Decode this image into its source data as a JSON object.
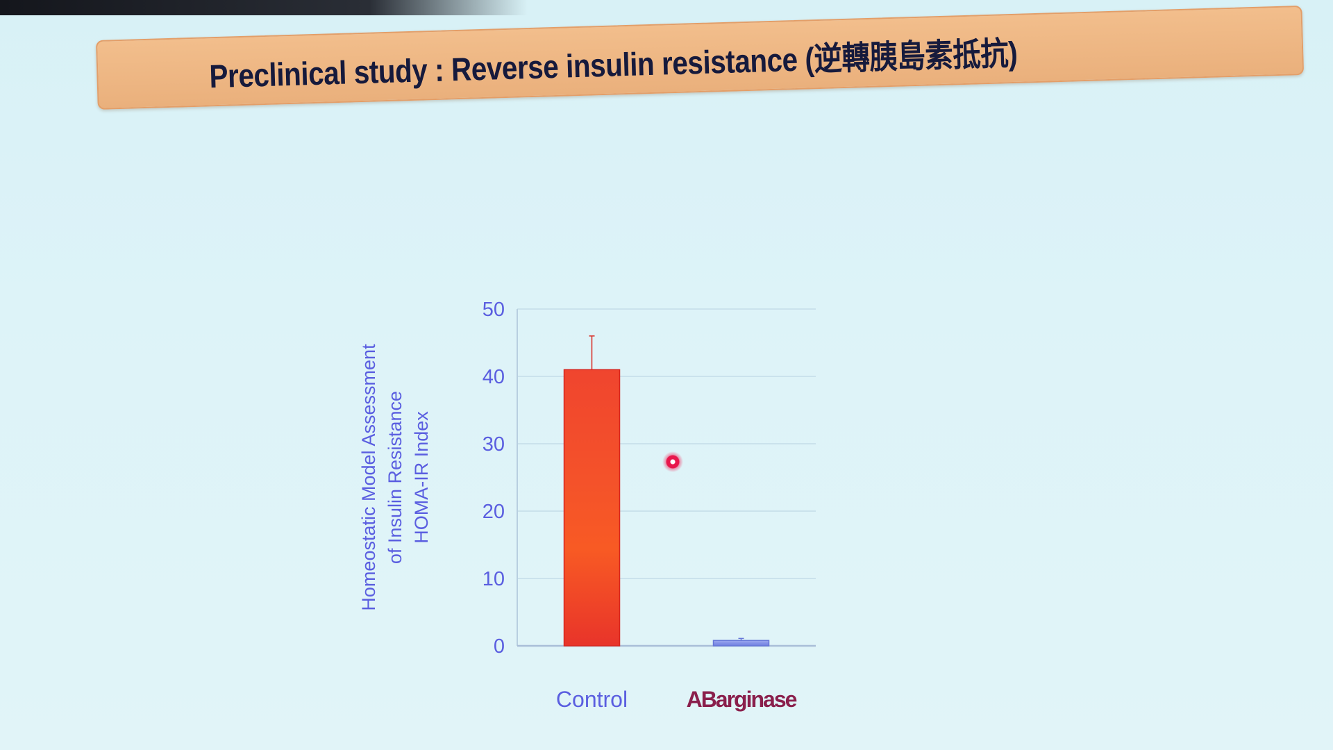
{
  "slide": {
    "title": "Preclinical study :  Reverse insulin resistance (逆轉胰島素抵抗)"
  },
  "colors": {
    "background": "#dcf2f7",
    "banner": "#eeb582",
    "title_text": "#161a3c",
    "axis_text": "#5a5ee0",
    "bar_control": "#f03a2e",
    "bar_abarginase": "#7f8ee6",
    "label_abarginase": "#8a1f4c",
    "pointer": "#e8174c"
  },
  "chart_data": {
    "type": "bar",
    "categories": [
      "Control",
      "ABarginase"
    ],
    "values": [
      41,
      0.8
    ],
    "error_bars": [
      5,
      0.3
    ],
    "ylabel": [
      "Homeostatic Model Assessment",
      "of Insulin Resistance",
      "HOMA-IR Index"
    ],
    "ylim": [
      0,
      50
    ],
    "yticks": [
      "0",
      "10",
      "20",
      "30",
      "40",
      "50"
    ],
    "grid": true
  }
}
